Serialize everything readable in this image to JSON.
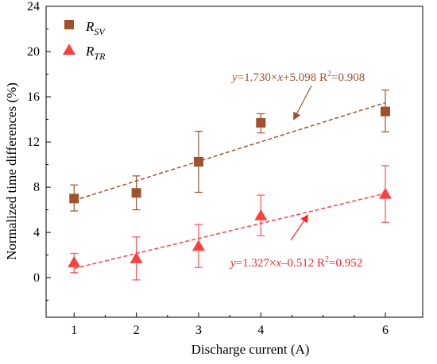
{
  "chart_data": {
    "type": "scatter",
    "xlabel": "Discharge current (A)",
    "ylabel": "Normalized time differences (%)",
    "xlim": [
      0.55,
      6.6
    ],
    "ylim": [
      -3.5,
      24
    ],
    "x_ticks": [
      1,
      2,
      3,
      4,
      6
    ],
    "y_ticks": [
      0,
      4,
      8,
      12,
      16,
      20,
      24
    ],
    "grid": false,
    "legend_position": "top-left",
    "series": [
      {
        "name": "R_SV",
        "legend_main": "R",
        "legend_sub": "SV",
        "marker": "square",
        "color": "#a0522d",
        "x": [
          1,
          2,
          3,
          4,
          6
        ],
        "y": [
          7.0,
          7.5,
          10.25,
          13.7,
          14.7
        ],
        "err_low": [
          1.1,
          1.5,
          2.7,
          0.9,
          1.8
        ],
        "err_high": [
          1.2,
          1.5,
          2.7,
          0.8,
          1.9
        ],
        "fit": {
          "slope": 1.73,
          "intercept": 5.098,
          "r2": 0.908,
          "x_range": [
            1,
            6
          ],
          "label_y": "y",
          "label_mid": "=1.730×",
          "label_x": "x",
          "label_rest": "+5.098  R",
          "label_sup": "2",
          "label_end": "=0.908"
        }
      },
      {
        "name": "R_TR",
        "legend_main": "R",
        "legend_sub": "TR",
        "marker": "triangle",
        "color": "#ff4040",
        "x": [
          1,
          2,
          3,
          4,
          6
        ],
        "y": [
          1.35,
          1.7,
          2.8,
          5.5,
          7.4
        ],
        "err_low": [
          0.9,
          1.9,
          1.9,
          1.8,
          2.5
        ],
        "err_high": [
          0.8,
          1.9,
          1.9,
          1.8,
          2.5
        ],
        "fit": {
          "slope": 1.327,
          "intercept": -0.512,
          "r2": 0.952,
          "x_range": [
            1,
            6
          ],
          "label_y": "y",
          "label_mid": "=1.327×",
          "label_x": "x",
          "label_rest": "–0.512  R",
          "label_sup": "2",
          "label_end": "=0.952"
        }
      }
    ]
  }
}
